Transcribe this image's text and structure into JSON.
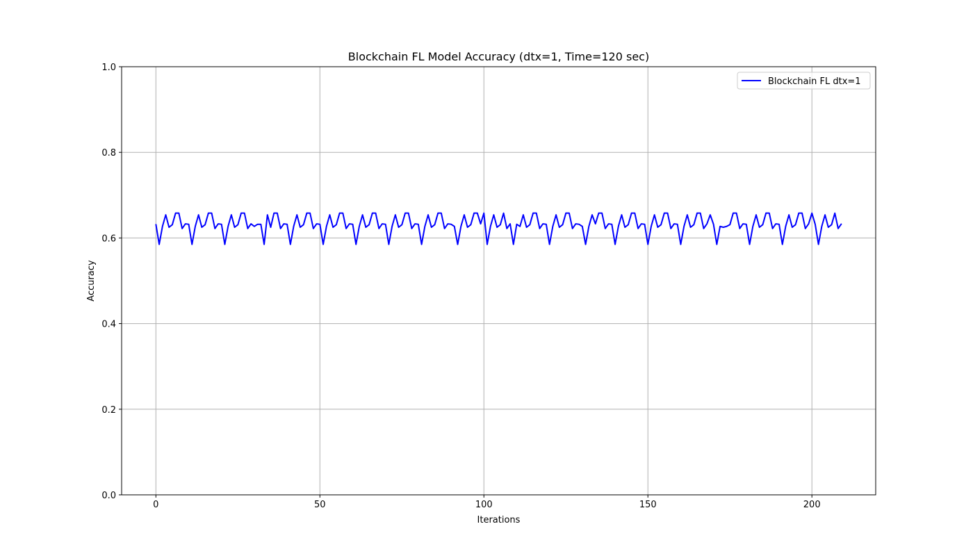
{
  "chart_data": {
    "type": "line",
    "title": "Blockchain FL Model Accuracy (dtx=1, Time=120 sec)",
    "xlabel": "Iterations",
    "ylabel": "Accuracy",
    "xlim": [
      -10.45,
      219.45
    ],
    "ylim": [
      0.0,
      1.0
    ],
    "xticks": [
      0,
      50,
      100,
      150,
      200
    ],
    "yticks": [
      0.0,
      0.2,
      0.4,
      0.6,
      0.8,
      1.0
    ],
    "xtick_labels": [
      "0",
      "50",
      "100",
      "150",
      "200"
    ],
    "ytick_labels": [
      "0.0",
      "0.2",
      "0.4",
      "0.6",
      "0.8",
      "1.0"
    ],
    "grid": true,
    "legend_position": "top-right",
    "colors": {
      "series": "#0000ff",
      "grid": "#b0b0b0",
      "axis": "#000000"
    },
    "series": [
      {
        "name": "Blockchain FL dtx=1",
        "x_start": 0,
        "x_step": 1,
        "values": [
          0.632,
          0.585,
          0.627,
          0.654,
          0.625,
          0.631,
          0.658,
          0.658,
          0.622,
          0.633,
          0.632,
          0.585,
          0.627,
          0.654,
          0.625,
          0.631,
          0.658,
          0.658,
          0.622,
          0.633,
          0.632,
          0.585,
          0.627,
          0.654,
          0.625,
          0.631,
          0.658,
          0.658,
          0.622,
          0.633,
          0.627,
          0.632,
          0.632,
          0.585,
          0.654,
          0.625,
          0.658,
          0.658,
          0.622,
          0.633,
          0.632,
          0.585,
          0.627,
          0.654,
          0.625,
          0.631,
          0.658,
          0.658,
          0.622,
          0.633,
          0.632,
          0.585,
          0.627,
          0.654,
          0.625,
          0.631,
          0.658,
          0.658,
          0.622,
          0.633,
          0.632,
          0.585,
          0.627,
          0.654,
          0.625,
          0.631,
          0.658,
          0.658,
          0.622,
          0.633,
          0.632,
          0.585,
          0.627,
          0.654,
          0.625,
          0.631,
          0.658,
          0.658,
          0.622,
          0.633,
          0.632,
          0.585,
          0.627,
          0.654,
          0.625,
          0.631,
          0.658,
          0.658,
          0.622,
          0.633,
          0.632,
          0.627,
          0.585,
          0.627,
          0.654,
          0.625,
          0.631,
          0.658,
          0.658,
          0.633,
          0.658,
          0.585,
          0.627,
          0.654,
          0.625,
          0.631,
          0.658,
          0.622,
          0.633,
          0.585,
          0.632,
          0.627,
          0.654,
          0.625,
          0.631,
          0.658,
          0.658,
          0.622,
          0.633,
          0.632,
          0.585,
          0.627,
          0.654,
          0.625,
          0.631,
          0.658,
          0.658,
          0.622,
          0.633,
          0.632,
          0.627,
          0.585,
          0.627,
          0.654,
          0.633,
          0.658,
          0.658,
          0.622,
          0.633,
          0.632,
          0.585,
          0.627,
          0.654,
          0.625,
          0.631,
          0.658,
          0.658,
          0.622,
          0.633,
          0.632,
          0.585,
          0.627,
          0.654,
          0.625,
          0.631,
          0.658,
          0.658,
          0.622,
          0.633,
          0.632,
          0.585,
          0.627,
          0.654,
          0.625,
          0.631,
          0.658,
          0.658,
          0.622,
          0.633,
          0.654,
          0.632,
          0.585,
          0.627,
          0.625,
          0.627,
          0.631,
          0.658,
          0.658,
          0.622,
          0.633,
          0.632,
          0.585,
          0.627,
          0.654,
          0.625,
          0.631,
          0.658,
          0.658,
          0.622,
          0.633,
          0.632,
          0.585,
          0.627,
          0.654,
          0.625,
          0.631,
          0.658,
          0.658,
          0.622,
          0.633,
          0.658,
          0.632,
          0.585,
          0.627,
          0.654,
          0.625,
          0.631,
          0.658,
          0.622,
          0.633
        ]
      }
    ]
  }
}
